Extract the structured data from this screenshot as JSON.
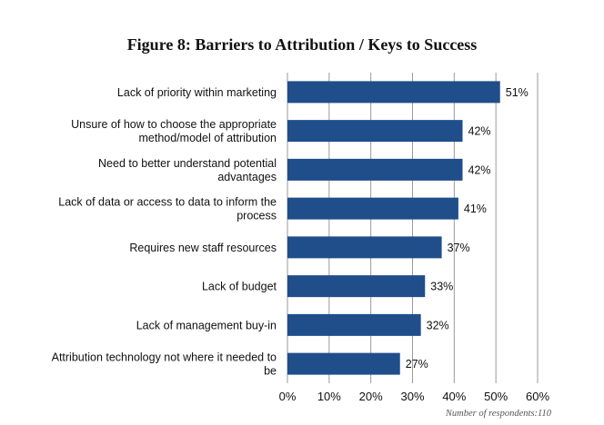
{
  "chart_data": {
    "type": "bar",
    "orientation": "horizontal",
    "title": "Figure 8: Barriers to Attribution / Keys to Success",
    "categories": [
      [
        "Lack of priority within marketing"
      ],
      [
        "Unsure of how to choose the appropriate",
        "method/model of attribution"
      ],
      [
        "Need to better understand potential",
        "advantages"
      ],
      [
        "Lack of data or access to data to inform the",
        "process"
      ],
      [
        "Requires new staff resources"
      ],
      [
        "Lack of budget"
      ],
      [
        "Lack of management buy-in"
      ],
      [
        "Attribution technology not where it needed to",
        "be"
      ]
    ],
    "values": [
      51,
      42,
      42,
      41,
      37,
      33,
      32,
      27
    ],
    "value_labels": [
      "51%",
      "42%",
      "42%",
      "41%",
      "37%",
      "33%",
      "32%",
      "27%"
    ],
    "xlim": [
      0,
      60
    ],
    "xticks": [
      0,
      10,
      20,
      30,
      40,
      50,
      60
    ],
    "xtick_labels": [
      "0%",
      "10%",
      "20%",
      "30%",
      "40%",
      "50%",
      "60%"
    ],
    "grid": "vertical",
    "bar_color": "#1f4e8a",
    "grid_color": "#9a9a9a",
    "note": "Number of respondents:110"
  }
}
